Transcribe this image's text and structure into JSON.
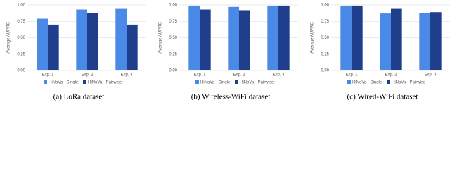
{
  "chart_data": [
    {
      "type": "bar",
      "caption": "(a) LoRa dataset",
      "ylabel": "Average AUPRC",
      "categories": [
        "Exp. 1",
        "Exp. 2",
        "Exp. 3"
      ],
      "series": [
        {
          "name": "HiNoVa - Single",
          "color": "#4a8ae6",
          "values": [
            0.79,
            0.93,
            0.94
          ]
        },
        {
          "name": "HiNoVa - Pairwise",
          "color": "#1f3f8c",
          "values": [
            0.7,
            0.88,
            0.7
          ]
        }
      ],
      "ylim": [
        0,
        1
      ],
      "yticks": [
        {
          "value": 0,
          "label": "0.00"
        },
        {
          "value": 0.25,
          "label": "0.25"
        },
        {
          "value": 0.5,
          "label": "0.50"
        },
        {
          "value": 0.75,
          "label": "0.75"
        },
        {
          "value": 1,
          "label": "1.00"
        }
      ],
      "grid": true
    },
    {
      "type": "bar",
      "caption": "(b) Wireless-WiFi dataset",
      "ylabel": "Average AUPRC",
      "categories": [
        "Exp. 1",
        "Exp. 2",
        "Exp. 3"
      ],
      "series": [
        {
          "name": "HiNoVa - Single",
          "color": "#4a8ae6",
          "values": [
            0.99,
            0.97,
            0.99
          ]
        },
        {
          "name": "HiNoVa - Pairwise",
          "color": "#1f3f8c",
          "values": [
            0.93,
            0.92,
            0.99
          ]
        }
      ],
      "ylim": [
        0,
        1
      ],
      "yticks": [
        {
          "value": 0,
          "label": "0.00"
        },
        {
          "value": 0.25,
          "label": "0.25"
        },
        {
          "value": 0.5,
          "label": "0.50"
        },
        {
          "value": 0.75,
          "label": "0.75"
        },
        {
          "value": 1,
          "label": "1.00"
        }
      ],
      "grid": true
    },
    {
      "type": "bar",
      "caption": "(c) Wired-WiFi dataset",
      "ylabel": "Average AUPRC",
      "categories": [
        "Exp. 1",
        "Exp. 2",
        "Exp. 3"
      ],
      "series": [
        {
          "name": "HiNoVa - Single",
          "color": "#4a8ae6",
          "values": [
            0.99,
            0.87,
            0.88
          ]
        },
        {
          "name": "HiNoVa - Pairwise",
          "color": "#1f3f8c",
          "values": [
            0.99,
            0.94,
            0.89
          ]
        }
      ],
      "ylim": [
        0,
        1
      ],
      "yticks": [
        {
          "value": 0,
          "label": "0.00"
        },
        {
          "value": 0.25,
          "label": "0.25"
        },
        {
          "value": 0.5,
          "label": "0.50"
        },
        {
          "value": 0.75,
          "label": "0.75"
        },
        {
          "value": 1,
          "label": "1.00"
        }
      ],
      "grid": true
    }
  ]
}
